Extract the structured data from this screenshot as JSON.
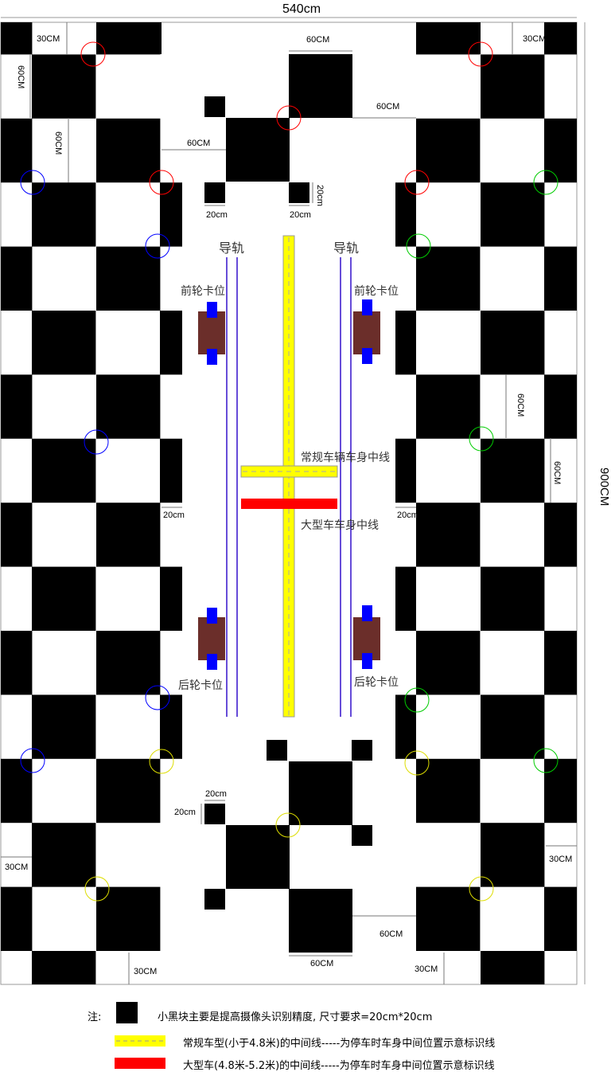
{
  "dimensions": {
    "width_label": "540cm",
    "height_label": "900CM"
  },
  "measures": {
    "a30_tl": "30CM",
    "a60_tl_v": "60CM",
    "a60_tl_v2": "60CM",
    "a60_top": "60CM",
    "a60_top_r": "60CM",
    "a60_mid_l": "60CM",
    "a20_h1": "20cm",
    "a20_h2": "20cm",
    "a20_v1": "20cm",
    "a30_tr": "30CM",
    "a60_r_v1": "60CM",
    "a60_r_v2": "60CM",
    "a20_mid_l": "20cm",
    "a20_mid_r": "20cm",
    "a20_bot_h": "20cm",
    "a20_bot_v": "20cm",
    "a30_bl": "30CM",
    "a30_br": "30CM",
    "a60_bot_r": "60CM",
    "a60_bot": "60CM",
    "a30_bot_l": "30CM",
    "a30_bot_r": "30CM"
  },
  "labels": {
    "rail_left": "导轨",
    "rail_right": "导轨",
    "front_wheel_left": "前轮卡位",
    "front_wheel_right": "前轮卡位",
    "rear_wheel_left": "后轮卡位",
    "rear_wheel_right": "后轮卡位",
    "normal_centerline": "常规车辆车身中线",
    "large_centerline": "大型车车身中线"
  },
  "legend": {
    "note_prefix": "注:",
    "black_block": "小黑块主要是提高摄像头识别精度, 尺寸要求=20cm*20cm",
    "yellow_line": "常规车型(小于4.8米)的中间线-----为停车时车身中间位置示意标识线",
    "red_line": "大型车(4.8米-5.2米)的中间线-----为停车时车身中间位置示意标识线"
  },
  "colors": {
    "black": "#000000",
    "yellow": "#ffff00",
    "red": "#ff0000",
    "blue": "#0000ff",
    "green": "#00cc00",
    "rail": "#3311cc",
    "wheel_block": "#6b2e2a"
  }
}
